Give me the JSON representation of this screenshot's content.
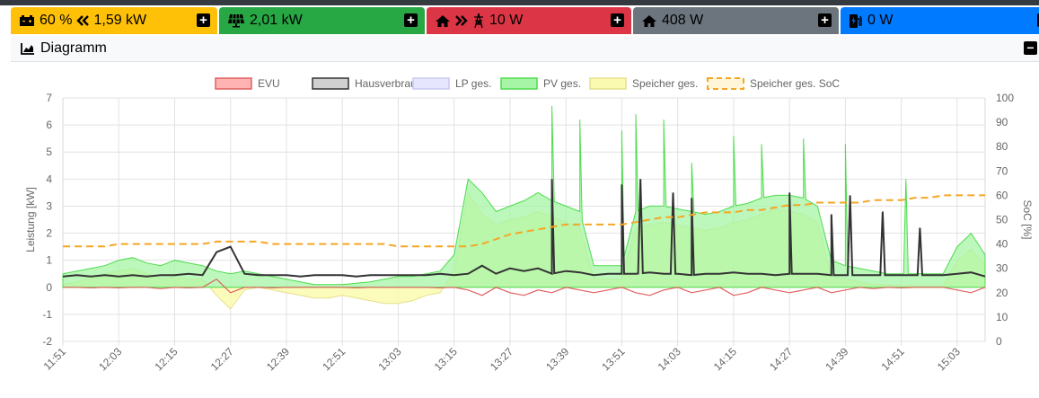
{
  "tiles": {
    "battery": {
      "soc": "60 %",
      "power": "1,59 kW",
      "color": "#ffc107",
      "icon": "car-battery-icon"
    },
    "pv": {
      "power": "2,01 kW",
      "color": "#28a745",
      "icon": "solar-panel-icon"
    },
    "evu": {
      "power": "10 W",
      "color": "#dc3545",
      "icon": "grid-pylon-icon"
    },
    "house": {
      "power": "408 W",
      "color": "#6c757d",
      "icon": "home-icon"
    },
    "lp": {
      "power": "0 W",
      "color": "#007bff",
      "icon": "charging-station-icon"
    }
  },
  "card": {
    "title": "Diagramm",
    "icon": "chart-area-icon"
  },
  "chart_data": {
    "type": "line",
    "ylabel": "Leistung [kW]",
    "y2label": "SoC [%]",
    "ylim": [
      -2,
      7
    ],
    "y2lim": [
      0,
      100
    ],
    "xticks": [
      "11:51",
      "12:03",
      "12:15",
      "12:27",
      "12:39",
      "12:51",
      "13:03",
      "13:15",
      "13:27",
      "13:39",
      "13:51",
      "14:03",
      "14:15",
      "14:27",
      "14:39",
      "14:51",
      "15:03"
    ],
    "yticks": [
      -2,
      -1,
      0,
      1,
      2,
      3,
      4,
      5,
      6,
      7
    ],
    "y2ticks": [
      0,
      10,
      20,
      30,
      40,
      50,
      60,
      70,
      80,
      90,
      100
    ],
    "grid": true,
    "legend_position": "top",
    "legend": [
      {
        "name": "EVU",
        "fill": "#ffb3b3",
        "stroke": "#e06060",
        "dashed": false
      },
      {
        "name": "Hausverbrauch",
        "fill": "#d0d0d0",
        "stroke": "#333333",
        "dashed": false
      },
      {
        "name": "LP ges.",
        "fill": "#e6e6ff",
        "stroke": "#c8c8f0",
        "dashed": false
      },
      {
        "name": "PV ges.",
        "fill": "#a6f5a6",
        "stroke": "#4ddc4d",
        "dashed": false
      },
      {
        "name": "Speicher ges.",
        "fill": "#fafab0",
        "stroke": "#e6e08c",
        "dashed": false
      },
      {
        "name": "Speicher ges. SoC",
        "fill": "#fff6da",
        "stroke": "#f5a623",
        "dashed": true
      }
    ],
    "x_minutes": [
      0,
      3,
      6,
      9,
      12,
      15,
      18,
      21,
      24,
      27,
      30,
      33,
      36,
      39,
      42,
      45,
      48,
      51,
      54,
      57,
      60,
      63,
      66,
      69,
      72,
      75,
      78,
      81,
      84,
      87,
      90,
      93,
      96,
      99,
      102,
      105,
      108,
      111,
      114,
      117,
      120,
      123,
      126,
      129,
      132,
      135,
      138,
      141,
      144,
      147,
      150,
      153,
      156,
      159,
      162,
      165,
      168,
      171,
      174,
      177,
      180,
      183,
      186,
      189,
      192,
      195,
      198
    ],
    "series": [
      {
        "name": "PV ges.",
        "values": [
          0.5,
          0.6,
          0.7,
          0.8,
          1.0,
          1.1,
          0.9,
          0.8,
          1.0,
          0.9,
          0.8,
          0.6,
          0.5,
          0.6,
          0.5,
          0.4,
          0.3,
          0.2,
          0.1,
          0.1,
          0.1,
          0.15,
          0.2,
          0.3,
          0.4,
          0.4,
          0.5,
          0.6,
          1.2,
          4.0,
          3.5,
          2.8,
          3.0,
          3.2,
          3.5,
          3.2,
          3.0,
          2.8,
          0.8,
          0.8,
          0.8,
          2.8,
          3.0,
          3.0,
          2.9,
          2.8,
          2.7,
          2.8,
          3.0,
          3.1,
          3.3,
          3.4,
          3.4,
          3.3,
          3.0,
          1.0,
          0.8,
          0.7,
          0.6,
          0.5,
          0.5,
          0.5,
          0.5,
          0.5,
          1.5,
          2.0,
          1.2
        ]
      },
      {
        "name": "Hausverbrauch",
        "values": [
          0.4,
          0.45,
          0.4,
          0.45,
          0.4,
          0.45,
          0.4,
          0.45,
          0.45,
          0.5,
          0.45,
          1.3,
          1.5,
          0.5,
          0.45,
          0.45,
          0.45,
          0.4,
          0.45,
          0.45,
          0.45,
          0.4,
          0.45,
          0.45,
          0.45,
          0.45,
          0.45,
          0.5,
          0.45,
          0.5,
          0.8,
          0.5,
          0.7,
          0.6,
          0.7,
          0.5,
          0.6,
          0.55,
          0.45,
          0.5,
          0.5,
          0.5,
          0.55,
          0.5,
          0.5,
          0.45,
          0.5,
          0.5,
          0.55,
          0.5,
          0.5,
          0.45,
          0.5,
          0.5,
          0.5,
          0.45,
          0.45,
          0.45,
          0.45,
          0.45,
          0.45,
          0.45,
          0.45,
          0.45,
          0.5,
          0.55,
          0.4
        ]
      },
      {
        "name": "Speicher ges.",
        "values": [
          0.1,
          0.2,
          0.4,
          0.5,
          0.6,
          0.7,
          0.5,
          0.3,
          0.4,
          0.3,
          0.3,
          -0.3,
          -0.8,
          -0.1,
          0.0,
          -0.1,
          -0.2,
          -0.3,
          -0.4,
          -0.4,
          -0.3,
          -0.4,
          -0.5,
          -0.6,
          -0.6,
          -0.5,
          -0.3,
          -0.2,
          0.6,
          3.5,
          2.7,
          2.3,
          2.5,
          2.6,
          2.8,
          2.6,
          2.4,
          2.2,
          0.3,
          0.3,
          0.3,
          2.2,
          2.3,
          2.4,
          2.3,
          2.2,
          2.1,
          2.2,
          2.4,
          2.5,
          2.7,
          2.9,
          2.8,
          2.7,
          2.4,
          0.4,
          0.3,
          0.2,
          0.1,
          0.1,
          0.05,
          0.05,
          0.05,
          0.05,
          1.0,
          1.4,
          0.8
        ]
      },
      {
        "name": "EVU",
        "values": [
          0.0,
          0.0,
          -0.02,
          0.0,
          -0.02,
          0.0,
          0.0,
          -0.05,
          0.0,
          -0.02,
          0.0,
          0.3,
          -0.2,
          0.0,
          0.0,
          -0.02,
          0.0,
          0.0,
          0.0,
          0.0,
          0.0,
          -0.02,
          0.0,
          0.0,
          0.0,
          0.0,
          0.0,
          -0.02,
          0.0,
          -0.1,
          -0.3,
          0.0,
          -0.2,
          -0.3,
          -0.1,
          -0.2,
          0.0,
          -0.1,
          -0.2,
          -0.1,
          0.0,
          -0.2,
          -0.3,
          -0.1,
          0.0,
          -0.2,
          -0.1,
          0.0,
          -0.3,
          -0.2,
          0.0,
          -0.1,
          -0.2,
          -0.1,
          0.0,
          -0.2,
          -0.1,
          0.0,
          -0.05,
          0.0,
          -0.02,
          0.0,
          0.0,
          0.0,
          -0.1,
          -0.2,
          0.0
        ]
      },
      {
        "name": "Speicher ges. SoC",
        "axis": "right",
        "values": [
          39,
          39,
          39,
          39,
          40,
          40,
          40,
          40,
          40,
          40,
          40,
          41,
          41,
          41,
          41,
          40,
          40,
          40,
          40,
          40,
          40,
          40,
          40,
          40,
          39,
          39,
          39,
          39,
          39,
          39,
          40,
          42,
          44,
          45,
          46,
          47,
          48,
          48,
          48,
          48,
          48,
          49,
          50,
          51,
          51,
          52,
          53,
          53,
          53,
          54,
          54,
          55,
          56,
          56,
          57,
          57,
          57,
          57,
          58,
          58,
          58,
          59,
          59,
          60,
          60,
          60,
          60
        ]
      }
    ],
    "pv_spikes": [
      {
        "x": 105,
        "y": 6.7
      },
      {
        "x": 111,
        "y": 6.2
      },
      {
        "x": 120,
        "y": 5.8
      },
      {
        "x": 123,
        "y": 6.4
      },
      {
        "x": 129,
        "y": 6.2
      },
      {
        "x": 135,
        "y": 4.6
      },
      {
        "x": 144,
        "y": 5.6
      },
      {
        "x": 150,
        "y": 5.3
      },
      {
        "x": 159,
        "y": 5.5
      },
      {
        "x": 168,
        "y": 5.3
      },
      {
        "x": 181,
        "y": 4.0
      }
    ],
    "house_spikes": [
      {
        "x": 105,
        "y": 4.0
      },
      {
        "x": 120,
        "y": 3.8
      },
      {
        "x": 124,
        "y": 4.0
      },
      {
        "x": 131,
        "y": 3.5
      },
      {
        "x": 135,
        "y": 3.3
      },
      {
        "x": 156,
        "y": 3.5
      },
      {
        "x": 165,
        "y": 2.7
      },
      {
        "x": 169,
        "y": 3.4
      },
      {
        "x": 176,
        "y": 2.8
      },
      {
        "x": 184,
        "y": 2.2
      }
    ]
  }
}
